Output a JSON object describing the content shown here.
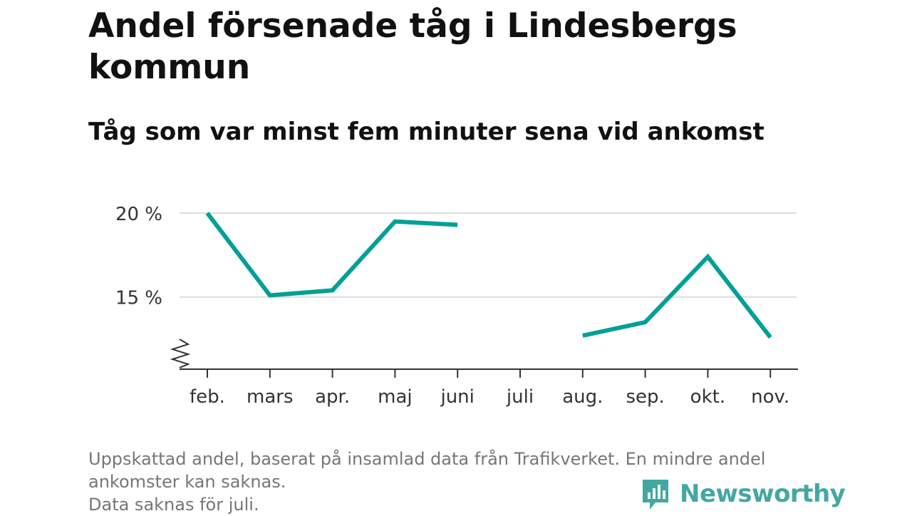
{
  "title": "Andel försenade tåg i Lindesbergs kommun",
  "subtitle": "Tåg som var minst fem minuter sena vid ankomst",
  "footer": {
    "line1": "Uppskattad andel, baserat på insamlad data från Trafikverket. En mindre andel",
    "line2": "ankomster kan saknas.",
    "line3": "Data saknas för juli."
  },
  "brand": {
    "name": "Newsworthy",
    "color": "#43a7a2"
  },
  "chart_data": {
    "type": "line",
    "categories": [
      "feb.",
      "mars",
      "apr.",
      "maj",
      "juni",
      "juli",
      "aug.",
      "sep.",
      "okt.",
      "nov."
    ],
    "series": [
      {
        "color": "#00a096",
        "values": [
          20.0,
          15.1,
          15.4,
          19.5,
          19.3,
          null,
          12.7,
          13.5,
          17.4,
          12.6
        ]
      }
    ],
    "yticks": [
      15,
      20
    ],
    "ytick_labels": [
      "15 %",
      "20 %"
    ],
    "ylim": [
      10.7,
      20
    ],
    "y_axis_break": true,
    "grid": true,
    "legend": "none"
  }
}
